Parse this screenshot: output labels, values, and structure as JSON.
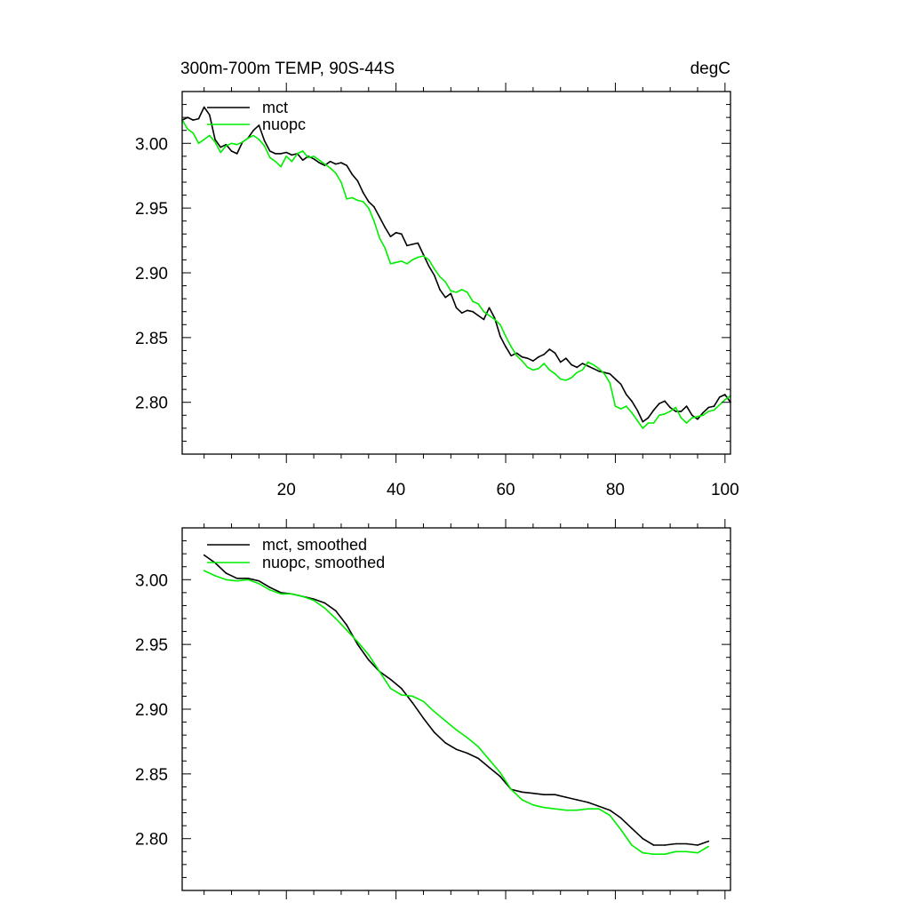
{
  "colors": {
    "mct": "#000000",
    "nuopc": "#00ee00",
    "frame": "#000000",
    "background": "#ffffff"
  },
  "chart_data": [
    {
      "type": "line",
      "title_left": "300m-700m TEMP, 90S-44S",
      "title_right": "degC",
      "xlim": [
        1,
        101
      ],
      "ylim": [
        2.76,
        3.04
      ],
      "xticks": [
        20,
        40,
        60,
        80,
        100
      ],
      "xtick_labels": [
        "20",
        "40",
        "60",
        "80",
        "100"
      ],
      "yticks": [
        2.8,
        2.85,
        2.9,
        2.95,
        3.0
      ],
      "ytick_labels": [
        "2.80",
        "2.85",
        "2.90",
        "2.95",
        "3.00"
      ],
      "legend_position": "top-left",
      "series": [
        {
          "name": "mct",
          "color_key": "mct",
          "x": [
            1,
            2,
            3,
            4,
            5,
            6,
            7,
            8,
            9,
            10,
            11,
            12,
            13,
            14,
            15,
            16,
            17,
            18,
            19,
            20,
            21,
            22,
            23,
            24,
            25,
            26,
            27,
            28,
            29,
            30,
            31,
            32,
            33,
            34,
            35,
            36,
            37,
            38,
            39,
            40,
            41,
            42,
            43,
            44,
            45,
            46,
            47,
            48,
            49,
            50,
            51,
            52,
            53,
            54,
            55,
            56,
            57,
            58,
            59,
            60,
            61,
            62,
            63,
            64,
            65,
            66,
            67,
            68,
            69,
            70,
            71,
            72,
            73,
            74,
            75,
            76,
            77,
            78,
            79,
            80,
            81,
            82,
            83,
            84,
            85,
            86,
            87,
            88,
            89,
            90,
            91,
            92,
            93,
            94,
            95,
            96,
            97,
            98,
            99,
            100,
            101
          ],
          "y": [
            3.018,
            3.02,
            3.018,
            3.019,
            3.028,
            3.022,
            3.003,
            2.997,
            2.999,
            2.994,
            2.992,
            3.001,
            3.004,
            3.01,
            3.014,
            3.002,
            2.994,
            2.992,
            2.992,
            2.993,
            2.991,
            2.992,
            2.987,
            2.99,
            2.988,
            2.985,
            2.983,
            2.986,
            2.984,
            2.985,
            2.983,
            2.976,
            2.971,
            2.962,
            2.955,
            2.951,
            2.943,
            2.935,
            2.928,
            2.931,
            2.93,
            2.921,
            2.922,
            2.923,
            2.914,
            2.905,
            2.898,
            2.887,
            2.881,
            2.884,
            2.873,
            2.869,
            2.871,
            2.87,
            2.867,
            2.864,
            2.873,
            2.865,
            2.851,
            2.843,
            2.836,
            2.838,
            2.835,
            2.834,
            2.832,
            2.835,
            2.837,
            2.841,
            2.838,
            2.831,
            2.834,
            2.829,
            2.827,
            2.83,
            2.828,
            2.826,
            2.824,
            2.823,
            2.822,
            2.818,
            2.814,
            2.806,
            2.801,
            2.794,
            2.785,
            2.788,
            2.794,
            2.799,
            2.801,
            2.796,
            2.793,
            2.793,
            2.797,
            2.79,
            2.787,
            2.792,
            2.796,
            2.797,
            2.804,
            2.806,
            2.8
          ]
        },
        {
          "name": "nuopc",
          "color_key": "nuopc",
          "x": [
            1,
            2,
            3,
            4,
            5,
            6,
            7,
            8,
            9,
            10,
            11,
            12,
            13,
            14,
            15,
            16,
            17,
            18,
            19,
            20,
            21,
            22,
            23,
            24,
            25,
            26,
            27,
            28,
            29,
            30,
            31,
            32,
            33,
            34,
            35,
            36,
            37,
            38,
            39,
            40,
            41,
            42,
            43,
            44,
            45,
            46,
            47,
            48,
            49,
            50,
            51,
            52,
            53,
            54,
            55,
            56,
            57,
            58,
            59,
            60,
            61,
            62,
            63,
            64,
            65,
            66,
            67,
            68,
            69,
            70,
            71,
            72,
            73,
            74,
            75,
            76,
            77,
            78,
            79,
            80,
            81,
            82,
            83,
            84,
            85,
            86,
            87,
            88,
            89,
            90,
            91,
            92,
            93,
            94,
            95,
            96,
            97,
            98,
            99,
            100,
            101
          ],
          "y": [
            3.018,
            3.011,
            3.008,
            3.0,
            3.003,
            3.006,
            3.001,
            2.993,
            2.998,
            3.0,
            2.999,
            3.001,
            3.004,
            3.006,
            3.003,
            2.998,
            2.989,
            2.986,
            2.982,
            2.99,
            2.986,
            2.992,
            2.994,
            2.989,
            2.99,
            2.987,
            2.984,
            2.981,
            2.977,
            2.97,
            2.957,
            2.958,
            2.956,
            2.955,
            2.95,
            2.94,
            2.927,
            2.919,
            2.907,
            2.908,
            2.909,
            2.907,
            2.91,
            2.912,
            2.913,
            2.91,
            2.903,
            2.897,
            2.893,
            2.886,
            2.885,
            2.887,
            2.885,
            2.878,
            2.876,
            2.87,
            2.867,
            2.864,
            2.86,
            2.851,
            2.843,
            2.836,
            2.832,
            2.827,
            2.825,
            2.826,
            2.83,
            2.825,
            2.822,
            2.818,
            2.817,
            2.819,
            2.823,
            2.825,
            2.831,
            2.829,
            2.826,
            2.822,
            2.815,
            2.797,
            2.795,
            2.797,
            2.792,
            2.786,
            2.78,
            2.784,
            2.784,
            2.79,
            2.791,
            2.793,
            2.796,
            2.788,
            2.784,
            2.788,
            2.789,
            2.79,
            2.793,
            2.794,
            2.798,
            2.802,
            2.805
          ]
        }
      ]
    },
    {
      "type": "line",
      "xlim": [
        1,
        101
      ],
      "ylim": [
        2.76,
        3.04
      ],
      "xticks": [
        20,
        40,
        60,
        80,
        100
      ],
      "yticks": [
        2.8,
        2.85,
        2.9,
        2.95,
        3.0
      ],
      "ytick_labels": [
        "2.80",
        "2.85",
        "2.90",
        "2.95",
        "3.00"
      ],
      "legend_position": "top-left",
      "series": [
        {
          "name": "mct, smoothed",
          "color_key": "mct",
          "x": [
            5,
            7,
            9,
            11,
            13,
            15,
            17,
            19,
            21,
            23,
            25,
            27,
            29,
            31,
            33,
            35,
            37,
            39,
            41,
            43,
            45,
            47,
            49,
            51,
            53,
            55,
            57,
            59,
            61,
            63,
            65,
            67,
            69,
            71,
            73,
            75,
            77,
            79,
            81,
            83,
            85,
            87,
            89,
            91,
            93,
            95,
            97
          ],
          "y": [
            3.019,
            3.013,
            3.005,
            3.001,
            3.001,
            2.999,
            2.994,
            2.99,
            2.989,
            2.987,
            2.985,
            2.982,
            2.976,
            2.965,
            2.95,
            2.938,
            2.929,
            2.923,
            2.916,
            2.905,
            2.893,
            2.882,
            2.874,
            2.869,
            2.866,
            2.862,
            2.855,
            2.848,
            2.838,
            2.836,
            2.835,
            2.834,
            2.834,
            2.832,
            2.83,
            2.828,
            2.825,
            2.822,
            2.816,
            2.808,
            2.8,
            2.795,
            2.795,
            2.796,
            2.796,
            2.795,
            2.798
          ]
        },
        {
          "name": "nuopc, smoothed",
          "color_key": "nuopc",
          "x": [
            5,
            7,
            9,
            11,
            13,
            15,
            17,
            19,
            21,
            23,
            25,
            27,
            29,
            31,
            33,
            35,
            37,
            39,
            41,
            43,
            45,
            47,
            49,
            51,
            53,
            55,
            57,
            59,
            61,
            63,
            65,
            67,
            69,
            71,
            73,
            75,
            77,
            79,
            81,
            83,
            85,
            87,
            89,
            91,
            93,
            95,
            97
          ],
          "y": [
            3.007,
            3.003,
            3.0,
            2.999,
            3.0,
            2.997,
            2.992,
            2.989,
            2.989,
            2.987,
            2.984,
            2.978,
            2.97,
            2.961,
            2.952,
            2.942,
            2.929,
            2.916,
            2.911,
            2.91,
            2.906,
            2.898,
            2.891,
            2.884,
            2.878,
            2.871,
            2.861,
            2.851,
            2.838,
            2.83,
            2.826,
            2.824,
            2.823,
            2.822,
            2.822,
            2.823,
            2.823,
            2.818,
            2.807,
            2.795,
            2.789,
            2.788,
            2.788,
            2.79,
            2.79,
            2.789,
            2.794
          ]
        }
      ]
    }
  ]
}
